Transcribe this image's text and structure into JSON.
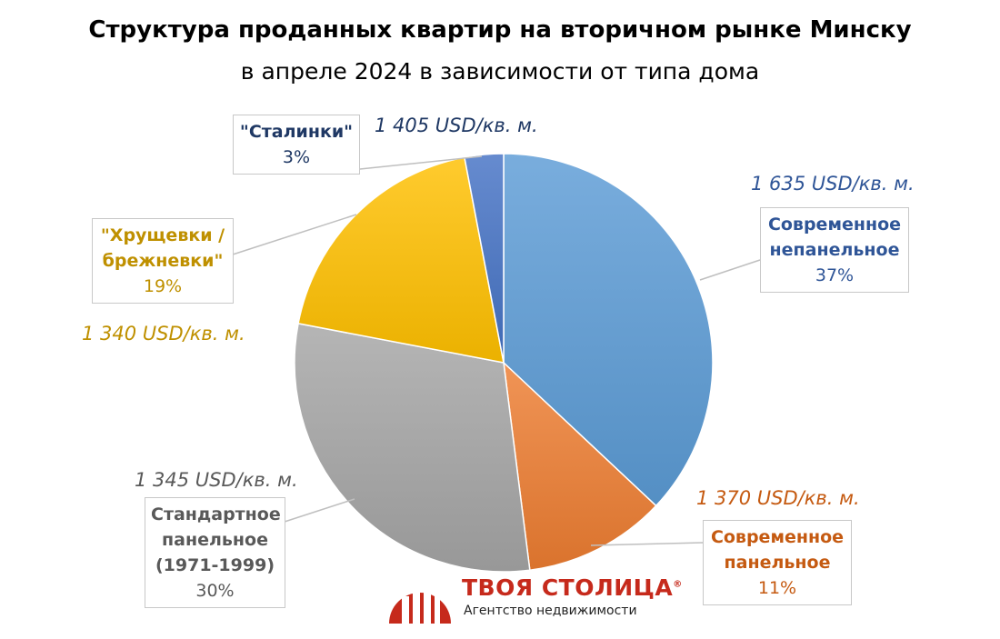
{
  "title": "Структура проданных квартир на вторичном рынке Минску",
  "subtitle": "в апреле 2024 в зависимости от типа дома",
  "colors": {
    "modern_nonpanel": "#5b9bd5",
    "modern_panel": "#ed7d31",
    "standard_panel": "#a5a5a5",
    "khrushchev": "#ffc000",
    "stalin": "#4472c4",
    "label_blue": "#2f5597",
    "label_orange": "#c55a11",
    "label_gray": "#595959",
    "label_gold": "#bf9000",
    "label_navy": "#1f3864",
    "logo_red": "#c62a1c"
  },
  "chart_data": {
    "type": "pie",
    "title": "Структура проданных квартир на вторичном рынке Минску",
    "subtitle": "в апреле 2024 в зависимости от типа дома",
    "start_angle_deg": 0,
    "direction": "clockwise",
    "slices": [
      {
        "key": "modern_nonpanel",
        "label_lines": [
          "Современное",
          "непанельное"
        ],
        "value": 37,
        "percent_label": "37%",
        "price": "1 635 USD/кв. м.",
        "color": "#5b9bd5",
        "text_color": "#2f5597"
      },
      {
        "key": "modern_panel",
        "label_lines": [
          "Современное",
          "панельное"
        ],
        "value": 11,
        "percent_label": "11%",
        "price": "1 370 USD/кв. м.",
        "color": "#ed7d31",
        "text_color": "#c55a11"
      },
      {
        "key": "standard_panel",
        "label_lines": [
          "Стандартное",
          "панельное",
          "(1971-1999)"
        ],
        "value": 30,
        "percent_label": "30%",
        "price": "1 345 USD/кв. м.",
        "color": "#a5a5a5",
        "text_color": "#595959"
      },
      {
        "key": "khrushchev",
        "label_lines": [
          "\"Хрущевки /",
          "брежневки\""
        ],
        "value": 19,
        "percent_label": "19%",
        "price": "1 340 USD/кв. м.",
        "color": "#ffc000",
        "text_color": "#bf9000"
      },
      {
        "key": "stalin",
        "label_lines": [
          "\"Сталинки\""
        ],
        "value": 3,
        "percent_label": "3%",
        "price": "1 405 USD/кв. м.",
        "color": "#4472c4",
        "text_color": "#1f3864"
      }
    ]
  },
  "logo": {
    "brand": "ТВОЯ СТОЛИЦА",
    "registered": "®",
    "tagline": "Агентство недвижимости"
  }
}
